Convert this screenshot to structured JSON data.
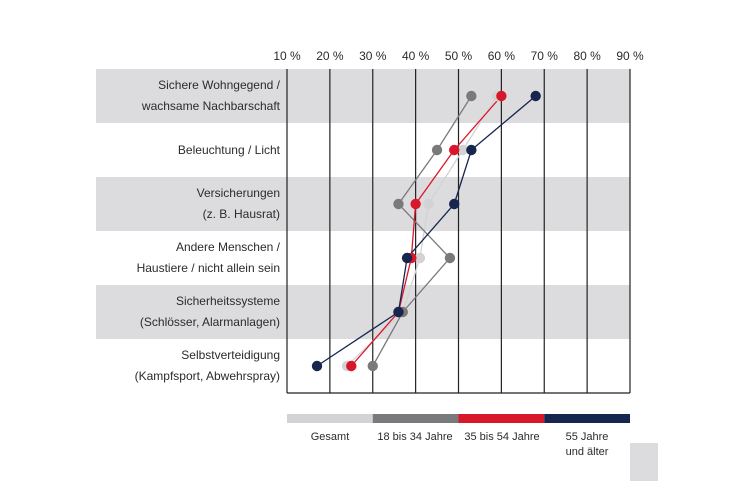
{
  "chart_data": {
    "type": "line",
    "orientation": "horizontal",
    "title": "",
    "xlabel": "",
    "ylabel": "",
    "xlim": [
      10,
      90
    ],
    "x_ticks": [
      "10 %",
      "20 %",
      "30 %",
      "40 %",
      "50 %",
      "60 %",
      "70 %",
      "80 %",
      "90 %"
    ],
    "x_tick_values": [
      10,
      20,
      30,
      40,
      50,
      60,
      70,
      80,
      90
    ],
    "grid": true,
    "legend_position": "bottom",
    "categories": [
      [
        "Sichere Wohngegend /",
        "wachsame Nachbarschaft"
      ],
      [
        "Beleuchtung / Licht"
      ],
      [
        "Versicherungen",
        "(z. B. Hausrat)"
      ],
      [
        "Andere Menschen /",
        "Haustiere / nicht allein sein"
      ],
      [
        "Sicherheitssysteme",
        "(Schlösser, Alarmanlagen)"
      ],
      [
        "Selbstverteidigung",
        "(Kampfsport, Abwehrspray)"
      ]
    ],
    "series": [
      {
        "name": "Gesamt",
        "color": "#d3d3d5",
        "values": [
          59,
          51,
          43,
          41,
          37,
          24
        ]
      },
      {
        "name": "18 bis 34 Jahre",
        "color": "#7a7a7c",
        "values": [
          53,
          45,
          36,
          48,
          37,
          30
        ]
      },
      {
        "name": "35 bis 54 Jahre",
        "color": "#d9172a",
        "values": [
          60,
          49,
          40,
          39,
          36,
          25
        ]
      },
      {
        "name": "55 Jahre und älter",
        "color": "#16264f",
        "values": [
          68,
          53,
          49,
          38,
          36,
          17
        ]
      }
    ]
  },
  "legend": [
    {
      "lines": [
        "Gesamt"
      ]
    },
    {
      "lines": [
        "18 bis 34 Jahre"
      ]
    },
    {
      "lines": [
        "35 bis 54 Jahre"
      ]
    },
    {
      "lines": [
        "55 Jahre",
        "und älter"
      ]
    }
  ],
  "colors": {
    "band": "#dcdcde",
    "grid": "#222222",
    "corner_box": "#dcdcde"
  }
}
